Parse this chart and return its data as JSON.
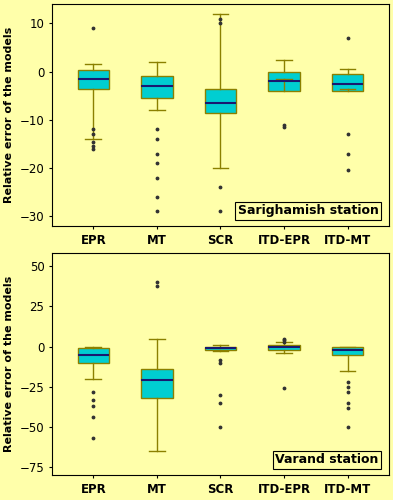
{
  "subplot1": {
    "title": "Sarighamish station",
    "ylabel": "Relative error of the models",
    "ylim": [
      -32,
      14
    ],
    "yticks": [
      10,
      0,
      -10,
      -20,
      -30
    ],
    "categories": [
      "EPR",
      "MT",
      "SCR",
      "ITD-EPR",
      "ITD-MT"
    ],
    "boxes": [
      {
        "whislo": -14,
        "q1": -3.5,
        "med": -1.5,
        "q3": 0.3,
        "whishi": 1.5,
        "fliers": [
          9,
          -12,
          -13,
          -14.5,
          -15.5,
          -16
        ]
      },
      {
        "whislo": -8,
        "q1": -5.5,
        "med": -3,
        "q3": -1,
        "whishi": 2,
        "fliers": [
          -12,
          -14,
          -17,
          -19,
          -22,
          -26,
          -29
        ]
      },
      {
        "whislo": -20,
        "q1": -8.5,
        "med": -6.5,
        "q3": -3.5,
        "whishi": 12,
        "fliers": [
          11,
          10,
          -24,
          -29
        ]
      },
      {
        "whislo": -1.5,
        "q1": -4,
        "med": -2,
        "q3": 0,
        "whishi": 2.5,
        "fliers": [
          -11,
          -11.5
        ]
      },
      {
        "whislo": -3.5,
        "q1": -4,
        "med": -2.5,
        "q3": -0.5,
        "whishi": 0.5,
        "fliers": [
          7,
          -13,
          -17,
          -20.5
        ]
      }
    ]
  },
  "subplot2": {
    "title": "Varand station",
    "ylabel": "Relative error of the models",
    "ylim": [
      -80,
      58
    ],
    "yticks": [
      50,
      25,
      0,
      -25,
      -50,
      -75
    ],
    "categories": [
      "EPR",
      "MT",
      "SCR",
      "ITD-EPR",
      "ITD-MT"
    ],
    "boxes": [
      {
        "whislo": -20,
        "q1": -10,
        "med": -5,
        "q3": -1,
        "whishi": 0,
        "fliers": [
          -28,
          -33,
          -37,
          -44,
          -57
        ]
      },
      {
        "whislo": -65,
        "q1": -32,
        "med": -21,
        "q3": -14,
        "whishi": 5,
        "fliers": [
          40,
          38
        ]
      },
      {
        "whislo": -3,
        "q1": -2,
        "med": -1,
        "q3": 0,
        "whishi": 1,
        "fliers": [
          -8,
          -10,
          -30,
          -35,
          -50
        ]
      },
      {
        "whislo": -4,
        "q1": -2,
        "med": 0,
        "q3": 1,
        "whishi": 3,
        "fliers": [
          5,
          4,
          3,
          -26
        ]
      },
      {
        "whislo": -15,
        "q1": -5,
        "med": -2,
        "q3": -0.5,
        "whishi": 0,
        "fliers": [
          -22,
          -25,
          -28,
          -35,
          -38,
          -50
        ]
      }
    ]
  },
  "box_facecolor": "#00CED1",
  "box_edgecolor": "#8B8000",
  "median_color": "#191970",
  "whisker_color": "#8B8000",
  "cap_color": "#8B8000",
  "flier_color": "#333333",
  "background_color": "#FFFFAA",
  "title_fontsize": 9,
  "label_fontsize": 8,
  "tick_fontsize": 8.5
}
